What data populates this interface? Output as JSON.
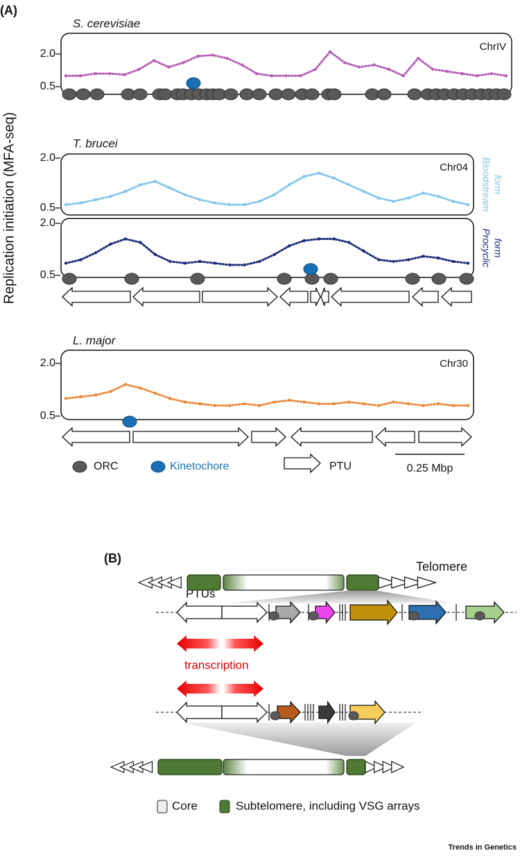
{
  "panel_a": {
    "label": "(A)",
    "y_axis_label": "Replication initiation (MFA-seq)",
    "tracks": [
      {
        "organism": "S. cerevisiae",
        "chromosome": "ChrIV",
        "color": "#b45cb4",
        "ylim": [
          0.15,
          2.95
        ],
        "yticks": [
          0.5,
          {
            "value": 2,
            "label": "2.0"
          }
        ],
        "profile": [
          1.0,
          1.0,
          1.1,
          1.1,
          1.05,
          1.3,
          1.7,
          1.4,
          1.6,
          1.9,
          1.95,
          1.8,
          1.5,
          1.1,
          1.0,
          1.0,
          1.0,
          1.3,
          2.1,
          1.6,
          1.4,
          1.5,
          1.3,
          1.0,
          1.8,
          1.3,
          1.2,
          1.1,
          1.0,
          1.1,
          1.0
        ]
      },
      {
        "organism": "T. brucei",
        "chromosome": "Chr04",
        "form_lines": [
          "Bloodstream",
          "form"
        ],
        "color": "#7fc4e8",
        "ylim": [
          0.29,
          2.125
        ],
        "yticks": [
          0.5,
          {
            "value": 2,
            "label": "2.0"
          }
        ],
        "profile": [
          0.6,
          0.65,
          0.75,
          0.85,
          1.0,
          1.2,
          1.3,
          1.1,
          0.9,
          0.75,
          0.65,
          0.6,
          0.6,
          0.7,
          0.9,
          1.2,
          1.45,
          1.55,
          1.4,
          1.2,
          1.0,
          0.8,
          0.7,
          0.8,
          0.95,
          0.85,
          0.7,
          0.6
        ]
      },
      {
        "form_lines": [
          "Procyclic",
          "form"
        ],
        "color": "#1c2b7a",
        "ylim": [
          0.44,
          2.14
        ],
        "yticks": [
          0.5,
          {
            "value": 2,
            "label": "2.0"
          }
        ],
        "profile": [
          0.85,
          0.95,
          1.15,
          1.4,
          1.55,
          1.45,
          1.1,
          0.9,
          0.85,
          0.9,
          0.85,
          0.8,
          0.8,
          0.9,
          1.1,
          1.35,
          1.5,
          1.55,
          1.55,
          1.45,
          1.2,
          0.95,
          0.9,
          0.95,
          1.05,
          1.0,
          0.9,
          0.85
        ]
      },
      {
        "organism": "L. major",
        "chromosome": "Chr30",
        "color": "#e8893a",
        "ylim": [
          0.4,
          2.375
        ],
        "yticks": [
          0.5,
          {
            "value": 2,
            "label": "2.0"
          }
        ],
        "profile": [
          1.0,
          1.05,
          1.1,
          1.2,
          1.4,
          1.3,
          1.15,
          1.0,
          0.9,
          0.85,
          0.8,
          0.8,
          0.85,
          0.8,
          0.9,
          0.95,
          0.9,
          0.85,
          0.85,
          0.9,
          0.85,
          0.8,
          0.9,
          0.85,
          0.8,
          0.85,
          0.8,
          0.8
        ]
      }
    ],
    "legend": {
      "orc": "ORC",
      "kinetochore": "Kinetochore",
      "ptu": "PTU",
      "scale": "0.25 Mbp"
    }
  },
  "panel_b": {
    "label": "(B)",
    "telomere": "Telomere",
    "ptus": "PTUs",
    "transcription": "transcription",
    "legend": {
      "core": "Core",
      "subtelomere": "Subtelomere, including VSG arrays"
    }
  },
  "footer": "Trends in Genetics"
}
